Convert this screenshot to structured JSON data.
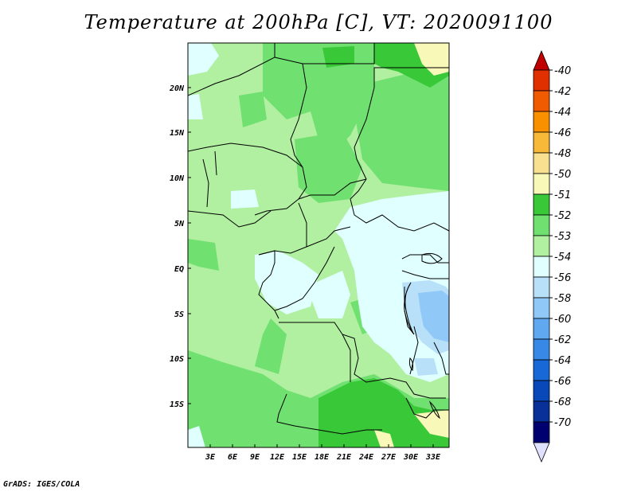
{
  "title": "Temperature at 200hPa [C], VT: 2020091100",
  "credit": "GrADS: IGES/COLA",
  "map": {
    "lat_labels": [
      "20N",
      "15N",
      "10N",
      "5N",
      "EQ",
      "5S",
      "10S",
      "15S"
    ],
    "lon_labels": [
      "3E",
      "6E",
      "9E",
      "12E",
      "15E",
      "18E",
      "21E",
      "24E",
      "27E",
      "30E",
      "33E"
    ]
  },
  "colorbar": {
    "labels": [
      "-40",
      "-42",
      "-44",
      "-46",
      "-48",
      "-50",
      "-51",
      "-52",
      "-53",
      "-54",
      "-56",
      "-58",
      "-60",
      "-62",
      "-64",
      "-66",
      "-68",
      "-70"
    ],
    "colors": [
      "#c00000",
      "#e03000",
      "#f05a00",
      "#f89000",
      "#f8b838",
      "#f8e090",
      "#f8f8b8",
      "#38c838",
      "#70e070",
      "#b0f0a0",
      "#e0ffff",
      "#b8e0f8",
      "#90c8f8",
      "#60a8f0",
      "#3888e8",
      "#1868d8",
      "#0848b8",
      "#083098",
      "#000070",
      "#e0e0ff"
    ]
  }
}
